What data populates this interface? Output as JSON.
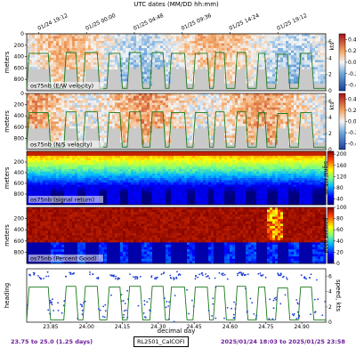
{
  "chart_data": {
    "top_axis": {
      "label": "UTC dates (MM/DD hh:mm)",
      "ticks": [
        "01/24 19:12",
        "01/25 00:00",
        "01/25 04:48",
        "01/25 09:36",
        "01/25 14:24",
        "01/25 19:12"
      ],
      "tick_x": [
        23.8,
        24.0,
        24.2,
        24.4,
        24.6,
        24.8
      ]
    },
    "x_axis": {
      "label": "decimal day",
      "range": [
        23.75,
        25.0
      ],
      "ticks": [
        23.85,
        24.0,
        24.15,
        24.3,
        24.45,
        24.6,
        24.75,
        24.9
      ],
      "tick_labels": [
        "23.85",
        "24.00",
        "24.15",
        "24.30",
        "24.45",
        "24.60",
        "24.75",
        "24.90"
      ]
    },
    "panels": [
      {
        "type": "heatmap",
        "label": "os75nb (E/W velocity)",
        "ylabel": "meters",
        "yrange": [
          0,
          1000
        ],
        "yticks": [
          0,
          200,
          400,
          600,
          800
        ],
        "colorbar": {
          "ticks": [
            "0.4",
            "0.2",
            "0.0",
            "-0.2",
            "-0.4"
          ],
          "values": [
            0.4,
            0.2,
            0.0,
            -0.2,
            -0.4
          ],
          "range": [
            -0.5,
            0.5
          ],
          "label": ""
        },
        "right_axis": {
          "label": "kts",
          "ticks": [
            "6",
            "4",
            "2",
            "0"
          ],
          "values": [
            6,
            4,
            2,
            0
          ],
          "range": [
            0,
            7
          ]
        },
        "colormap": "diverging"
      },
      {
        "type": "heatmap",
        "label": "os75nb (N/S velocity)",
        "ylabel": "meters",
        "yrange": [
          0,
          1000
        ],
        "yticks": [
          0,
          200,
          400,
          600,
          800
        ],
        "colorbar": {
          "ticks": [
            "0.4",
            "0.2",
            "0.0",
            "-0.2",
            "-0.4"
          ],
          "values": [
            0.4,
            0.2,
            0.0,
            -0.2,
            -0.4
          ],
          "range": [
            -0.5,
            0.5
          ],
          "label": ""
        },
        "right_axis": {
          "label": "kts",
          "ticks": [
            "6",
            "4",
            "2",
            "0"
          ],
          "values": [
            6,
            4,
            2,
            0
          ],
          "range": [
            0,
            7
          ]
        },
        "colormap": "diverging"
      },
      {
        "type": "heatmap",
        "label": "os75nb (signal return)",
        "ylabel": "meters",
        "yrange": [
          0,
          1000
        ],
        "yticks": [
          200,
          400,
          600,
          800
        ],
        "colorbar": {
          "ticks": [
            "200",
            "160",
            "120",
            "80",
            "40"
          ],
          "values": [
            200,
            160,
            120,
            80,
            40
          ],
          "range": [
            20,
            210
          ],
          "label": "signal return"
        },
        "colormap": "jet"
      },
      {
        "type": "heatmap",
        "label": "os75nb (Percent Good)",
        "ylabel": "meters",
        "yrange": [
          0,
          1000
        ],
        "yticks": [
          200,
          400,
          600,
          800
        ],
        "colorbar": {
          "ticks": [
            "100",
            "80",
            "60",
            "40",
            "20",
            "0"
          ],
          "values": [
            100,
            80,
            60,
            40,
            20,
            0
          ],
          "range": [
            0,
            100
          ],
          "label": "percent good"
        },
        "colormap": "jet"
      },
      {
        "type": "line",
        "label": "",
        "ylabel": "heading",
        "right_label": "speed, kts",
        "right_axis": {
          "ticks": [
            "6",
            "4",
            "2",
            "0"
          ],
          "values": [
            6,
            4,
            2,
            0
          ],
          "range": [
            0,
            7
          ]
        },
        "series": [
          {
            "name": "heading"
          },
          {
            "name": "speed"
          }
        ]
      }
    ],
    "speed_segments": [
      [
        23.75,
        0.3
      ],
      [
        23.76,
        4.6
      ],
      [
        23.84,
        4.6
      ],
      [
        23.85,
        0.3
      ],
      [
        23.905,
        0.3
      ],
      [
        23.915,
        4.7
      ],
      [
        23.955,
        4.7
      ],
      [
        23.965,
        0.3
      ],
      [
        23.985,
        0.3
      ],
      [
        23.995,
        4.7
      ],
      [
        24.045,
        4.7
      ],
      [
        24.055,
        0.3
      ],
      [
        24.085,
        0.3
      ],
      [
        24.095,
        4.6
      ],
      [
        24.14,
        4.6
      ],
      [
        24.15,
        0.3
      ],
      [
        24.17,
        0.3
      ],
      [
        24.18,
        4.7
      ],
      [
        24.225,
        4.7
      ],
      [
        24.235,
        0.3
      ],
      [
        24.265,
        0.3
      ],
      [
        24.275,
        4.7
      ],
      [
        24.32,
        4.7
      ],
      [
        24.33,
        0.3
      ],
      [
        24.345,
        0.3
      ],
      [
        24.355,
        4.6
      ],
      [
        24.41,
        4.6
      ],
      [
        24.42,
        0.3
      ],
      [
        24.445,
        0.3
      ],
      [
        24.455,
        4.6
      ],
      [
        24.505,
        4.6
      ],
      [
        24.515,
        0.3
      ],
      [
        24.53,
        0.3
      ],
      [
        24.54,
        4.7
      ],
      [
        24.575,
        4.7
      ],
      [
        24.585,
        0.3
      ],
      [
        24.62,
        0.3
      ],
      [
        24.63,
        4.7
      ],
      [
        24.665,
        4.7
      ],
      [
        24.675,
        0.3
      ],
      [
        24.71,
        0.3
      ],
      [
        24.72,
        4.6
      ],
      [
        24.745,
        4.6
      ],
      [
        24.755,
        0.3
      ],
      [
        24.79,
        0.3
      ],
      [
        24.8,
        4.5
      ],
      [
        24.84,
        4.5
      ],
      [
        24.85,
        0.3
      ],
      [
        24.885,
        0.3
      ],
      [
        24.895,
        4.6
      ],
      [
        24.94,
        4.6
      ],
      [
        24.95,
        0.3
      ],
      [
        25.0,
        0.3
      ]
    ]
  },
  "footer": {
    "range_text": "23.75 to 25.0 (1.25 days)",
    "cruise": "RL2501_CalCOFI",
    "dates": "2025/01/24 18:03 to 2025/01/25 23:58"
  }
}
